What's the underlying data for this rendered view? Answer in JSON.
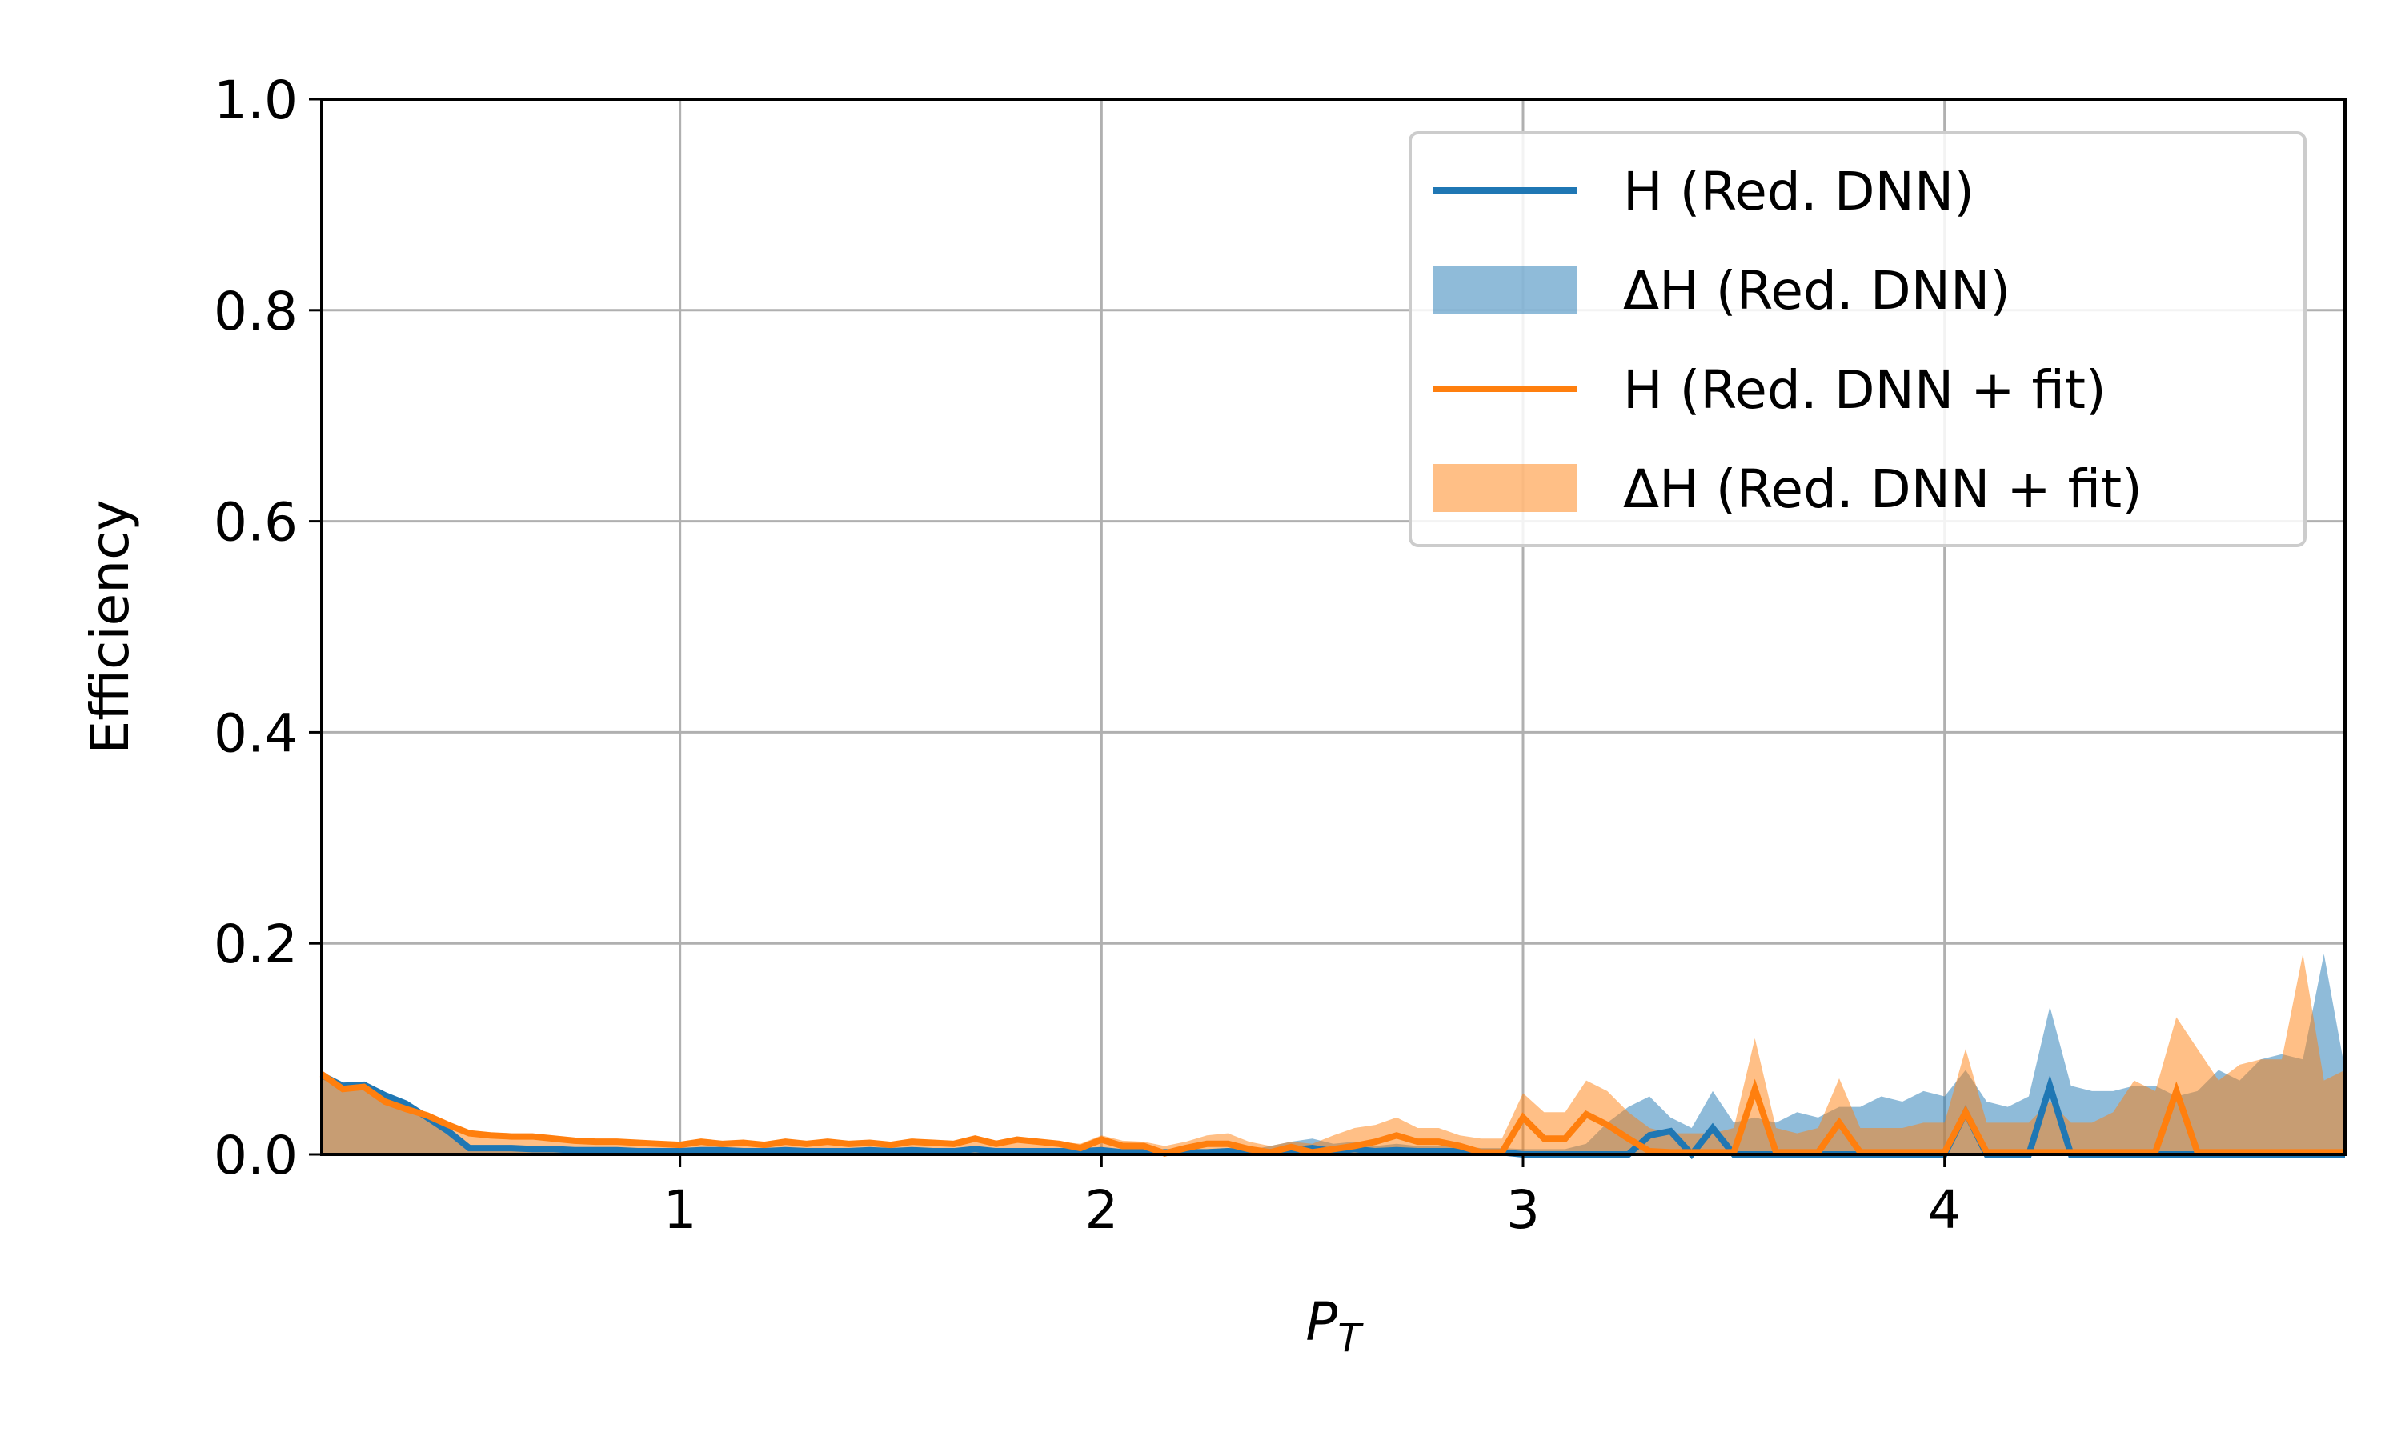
{
  "chart_data": {
    "type": "line",
    "title": "",
    "xlabel": "P",
    "xlabel_sub": "T",
    "ylabel": "Efficiency",
    "xlim": [
      0.15,
      4.95
    ],
    "ylim": [
      0,
      1
    ],
    "xticks": [
      1,
      2,
      3,
      4
    ],
    "xtick_labels": [
      "1",
      "2",
      "3",
      "4"
    ],
    "yticks": [
      0,
      0.2,
      0.4,
      0.6,
      0.8,
      1.0
    ],
    "ytick_labels": [
      "0.0",
      "0.2",
      "0.4",
      "0.6",
      "0.8",
      "1.0"
    ],
    "grid": true,
    "legend_position": "top-right",
    "x": [
      0.15,
      0.2,
      0.25,
      0.3,
      0.35,
      0.4,
      0.45,
      0.5,
      0.55,
      0.6,
      0.65,
      0.7,
      0.75,
      0.8,
      0.85,
      0.9,
      0.95,
      1.0,
      1.05,
      1.1,
      1.15,
      1.2,
      1.25,
      1.3,
      1.35,
      1.4,
      1.45,
      1.5,
      1.55,
      1.6,
      1.65,
      1.7,
      1.75,
      1.8,
      1.85,
      1.9,
      1.95,
      2.0,
      2.05,
      2.1,
      2.15,
      2.2,
      2.25,
      2.3,
      2.35,
      2.4,
      2.45,
      2.5,
      2.55,
      2.6,
      2.65,
      2.7,
      2.75,
      2.8,
      2.85,
      2.9,
      2.95,
      3.0,
      3.05,
      3.1,
      3.15,
      3.2,
      3.25,
      3.3,
      3.35,
      3.4,
      3.45,
      3.5,
      3.55,
      3.6,
      3.65,
      3.7,
      3.75,
      3.8,
      3.85,
      3.9,
      3.95,
      4.0,
      4.05,
      4.1,
      4.15,
      4.2,
      4.25,
      4.3,
      4.35,
      4.4,
      4.45,
      4.5,
      4.55,
      4.6,
      4.65,
      4.7,
      4.75,
      4.8,
      4.85,
      4.9,
      4.95
    ],
    "series": [
      {
        "name": "H (Red. DNN)",
        "kind": "line",
        "color": "#1f77b4",
        "values": [
          0.075,
          0.065,
          0.066,
          0.056,
          0.048,
          0.035,
          0.022,
          0.006,
          0.006,
          0.006,
          0.005,
          0.005,
          0.004,
          0.004,
          0.004,
          0.003,
          0.003,
          0.003,
          0.004,
          0.004,
          0.003,
          0.003,
          0.004,
          0.003,
          0.003,
          0.003,
          0.004,
          0.003,
          0.004,
          0.003,
          0.003,
          0.005,
          0.003,
          0.003,
          0.003,
          0.003,
          0.003,
          0.004,
          0.002,
          0.002,
          0.002,
          0.002,
          0.002,
          0.003,
          0.002,
          0.002,
          0.004,
          0.006,
          0.003,
          0.005,
          0.003,
          0.004,
          0.003,
          0.003,
          0.003,
          0.002,
          0.002,
          0,
          0,
          0,
          0,
          0,
          0,
          0.018,
          0.022,
          0,
          0.025,
          0,
          0,
          0,
          0,
          0,
          0,
          0,
          0,
          0,
          0,
          0,
          0.04,
          0,
          0,
          0,
          0.065,
          0,
          0,
          0,
          0,
          0,
          0,
          0,
          0,
          0,
          0,
          0,
          0,
          0,
          0
        ]
      },
      {
        "name": "ΔH (Red. DNN)",
        "kind": "band",
        "color": "#1f77b4",
        "opacity": 0.5,
        "values": [
          0.077,
          0.068,
          0.068,
          0.058,
          0.05,
          0.037,
          0.024,
          0.008,
          0.008,
          0.008,
          0.007,
          0.007,
          0.006,
          0.006,
          0.006,
          0.005,
          0.005,
          0.005,
          0.006,
          0.006,
          0.005,
          0.005,
          0.006,
          0.005,
          0.005,
          0.005,
          0.006,
          0.005,
          0.006,
          0.005,
          0.005,
          0.007,
          0.005,
          0.005,
          0.005,
          0.005,
          0.005,
          0.006,
          0.004,
          0.004,
          0.004,
          0.004,
          0.004,
          0.006,
          0.004,
          0.008,
          0.012,
          0.015,
          0.01,
          0.012,
          0.008,
          0.01,
          0.008,
          0.008,
          0.008,
          0.006,
          0.006,
          0.005,
          0.005,
          0.005,
          0.01,
          0.03,
          0.045,
          0.055,
          0.035,
          0.025,
          0.06,
          0.03,
          0.035,
          0.03,
          0.04,
          0.035,
          0.045,
          0.045,
          0.055,
          0.05,
          0.06,
          0.055,
          0.08,
          0.05,
          0.045,
          0.055,
          0.14,
          0.065,
          0.06,
          0.06,
          0.065,
          0.065,
          0.055,
          0.06,
          0.08,
          0.07,
          0.09,
          0.095,
          0.09,
          0.19,
          0.08
        ]
      },
      {
        "name": "H (Red. DNN + fit)",
        "kind": "line",
        "color": "#ff7f0e",
        "values": [
          0.076,
          0.062,
          0.064,
          0.05,
          0.043,
          0.037,
          0.028,
          0.02,
          0.018,
          0.017,
          0.017,
          0.015,
          0.013,
          0.012,
          0.012,
          0.011,
          0.01,
          0.009,
          0.012,
          0.01,
          0.011,
          0.009,
          0.012,
          0.01,
          0.012,
          0.01,
          0.011,
          0.009,
          0.012,
          0.011,
          0.01,
          0.015,
          0.01,
          0.014,
          0.012,
          0.01,
          0.006,
          0.014,
          0.008,
          0.008,
          0.001,
          0.006,
          0.01,
          0.01,
          0.005,
          0.002,
          0.007,
          0.002,
          0.005,
          0.008,
          0.012,
          0.018,
          0.012,
          0.012,
          0.008,
          0.002,
          0.002,
          0.035,
          0.015,
          0.015,
          0.038,
          0.028,
          0.015,
          0.003,
          0.002,
          0.002,
          0.002,
          0.002,
          0.062,
          0.002,
          0.002,
          0.002,
          0.03,
          0.002,
          0.002,
          0.002,
          0.002,
          0.002,
          0.04,
          0.002,
          0.002,
          0.002,
          0.002,
          0.002,
          0.002,
          0.002,
          0.002,
          0.002,
          0.06,
          0.002,
          0.002,
          0.002,
          0.002,
          0.002,
          0.002,
          0.002,
          0.002
        ]
      },
      {
        "name": "ΔH (Red. DNN + fit)",
        "kind": "band",
        "color": "#ff7f0e",
        "opacity": 0.5,
        "values": [
          0.078,
          0.064,
          0.066,
          0.052,
          0.045,
          0.039,
          0.03,
          0.022,
          0.02,
          0.019,
          0.019,
          0.017,
          0.015,
          0.014,
          0.014,
          0.013,
          0.012,
          0.011,
          0.014,
          0.012,
          0.013,
          0.011,
          0.014,
          0.012,
          0.014,
          0.012,
          0.013,
          0.011,
          0.014,
          0.013,
          0.012,
          0.017,
          0.012,
          0.016,
          0.014,
          0.012,
          0.01,
          0.018,
          0.013,
          0.012,
          0.008,
          0.012,
          0.018,
          0.02,
          0.012,
          0.008,
          0.012,
          0.01,
          0.018,
          0.025,
          0.028,
          0.035,
          0.025,
          0.025,
          0.018,
          0.015,
          0.015,
          0.058,
          0.04,
          0.04,
          0.07,
          0.06,
          0.04,
          0.025,
          0.02,
          0.02,
          0.02,
          0.025,
          0.11,
          0.025,
          0.02,
          0.025,
          0.072,
          0.025,
          0.025,
          0.025,
          0.03,
          0.03,
          0.1,
          0.03,
          0.03,
          0.03,
          0.05,
          0.03,
          0.03,
          0.04,
          0.07,
          0.06,
          0.13,
          0.1,
          0.07,
          0.085,
          0.09,
          0.09,
          0.19,
          0.07,
          0.08
        ]
      }
    ],
    "legend": [
      {
        "label": "H (Red. DNN)",
        "kind": "line",
        "color": "#1f77b4"
      },
      {
        "label": "ΔH (Red. DNN)",
        "kind": "band",
        "color": "#1f77b4"
      },
      {
        "label": "H (Red. DNN + fit)",
        "kind": "line",
        "color": "#ff7f0e"
      },
      {
        "label": "ΔH (Red. DNN + fit)",
        "kind": "band",
        "color": "#ff7f0e"
      }
    ],
    "colors": {
      "grid": "#b0b0b0",
      "axis": "#000000",
      "legend_border": "#cccccc"
    }
  }
}
